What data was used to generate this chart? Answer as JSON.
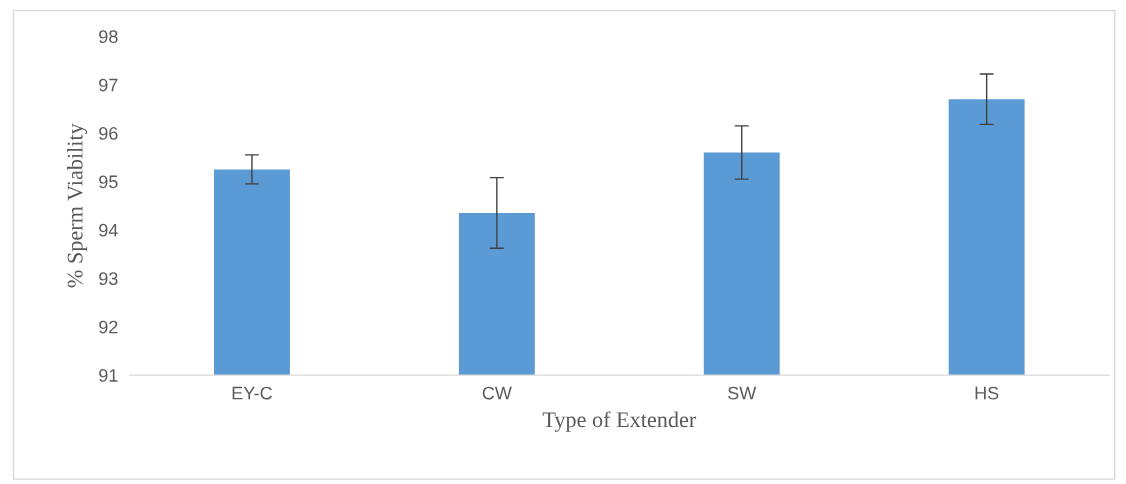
{
  "chart_data": {
    "type": "bar",
    "xlabel": "Type of Extender",
    "ylabel": "% Sperm Viability",
    "categories": [
      "EY-C",
      "CW",
      "SW",
      "HS"
    ],
    "values": [
      95.25,
      94.35,
      95.6,
      96.7
    ],
    "errors": [
      0.3,
      0.73,
      0.55,
      0.52
    ],
    "color": "#5b9bd5",
    "ylim": [
      91,
      98
    ],
    "yticks": [
      91,
      92,
      93,
      94,
      95,
      96,
      97,
      98
    ],
    "grid": false
  }
}
